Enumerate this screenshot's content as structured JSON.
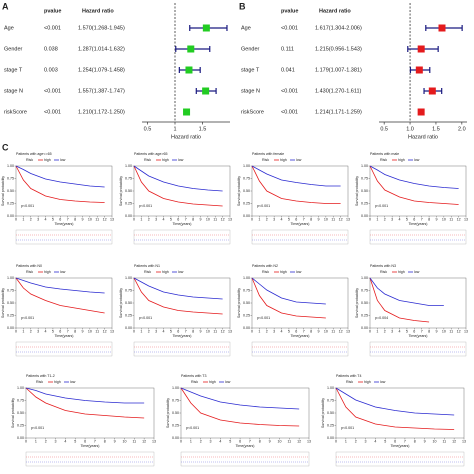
{
  "chart_data": [
    {
      "type": "forest",
      "label": "A",
      "headers": [
        "pvalue",
        "Hazard ratio"
      ],
      "categories": [
        "Age",
        "Gender",
        "stage T",
        "stage N",
        "riskScore"
      ],
      "pvalues": [
        "<0.001",
        "0.038",
        "0.003",
        "<0.001",
        "<0.001"
      ],
      "values": [
        1.57,
        1.287,
        1.254,
        1.557,
        1.21
      ],
      "lower": [
        1.268,
        1.014,
        1.079,
        1.387,
        1.172
      ],
      "upper": [
        1.945,
        1.632,
        1.458,
        1.747,
        1.25
      ],
      "value_labels": [
        "1.570(1.268-1.945)",
        "1.287(1.014-1.632)",
        "1.254(1.079-1.458)",
        "1.557(1.387-1.747)",
        "1.210(1.172-1.250)"
      ],
      "color": "#22cc22",
      "bar_color": "#1a1a80",
      "reference": 1,
      "xlim": [
        0.4,
        2.0
      ],
      "xticks": [
        0.5,
        1,
        1.5
      ],
      "xlabel": "Hazard ratio"
    },
    {
      "type": "forest",
      "label": "B",
      "headers": [
        "pvalue",
        "Hazard ratio"
      ],
      "categories": [
        "Age",
        "Gender",
        "stage T",
        "stage N",
        "riskScore"
      ],
      "pvalues": [
        "<0.001",
        "0.111",
        "0.041",
        "<0.001",
        "<0.001"
      ],
      "values": [
        1.617,
        1.215,
        1.179,
        1.43,
        1.214
      ],
      "lower": [
        1.304,
        0.956,
        1.007,
        1.27,
        1.171
      ],
      "upper": [
        2.006,
        1.543,
        1.381,
        1.611,
        1.259
      ],
      "value_labels": [
        "1.617(1.304-2.006)",
        "1.215(0.956-1.543)",
        "1.179(1.007-1.381)",
        "1.430(1.270-1.611)",
        "1.214(1.171-1.259)"
      ],
      "color": "#e41a1c",
      "bar_color": "#1a1a80",
      "reference": 1,
      "xlim": [
        0.4,
        2.1
      ],
      "xticks": [
        0.5,
        {
          "value": 1,
          "label": "1.0"
        },
        1.5,
        {
          "value": 2,
          "label": "2.0"
        }
      ],
      "xlabel": "Hazard ratio"
    },
    {
      "type": "km",
      "label": "C",
      "title": "Patients with age<=65",
      "pvalue_text": "p<0.001",
      "legend_title": "Risk",
      "xlabel": "Time(years)",
      "ylabel": "Survival probability",
      "x": [
        0,
        1,
        2,
        4,
        6,
        8,
        10,
        12
      ],
      "xlim": [
        0,
        13
      ],
      "xticks": [
        0,
        1,
        2,
        3,
        4,
        5,
        6,
        7,
        8,
        9,
        10,
        11,
        12,
        13
      ],
      "ylim": [
        0,
        1
      ],
      "yticks": [
        {
          "value": 0,
          "label": "0.00"
        },
        0.25,
        {
          "value": 0.5,
          "label": "0.50"
        },
        0.75,
        {
          "value": 1,
          "label": "1.00"
        }
      ],
      "series": [
        {
          "name": "high",
          "color": "#e41a1c",
          "values": [
            1,
            0.72,
            0.55,
            0.4,
            0.33,
            0.3,
            0.28,
            0.27
          ]
        },
        {
          "name": "low",
          "color": "#2a2ad0",
          "values": [
            1,
            0.93,
            0.85,
            0.74,
            0.68,
            0.64,
            0.6,
            0.58
          ]
        }
      ]
    },
    {
      "type": "km",
      "title": "Patients with age>65",
      "pvalue_text": "p<0.001",
      "legend_title": "Risk",
      "xlabel": "Time(years)",
      "ylabel": "Survival probability",
      "x": [
        0,
        1,
        2,
        4,
        6,
        8,
        10,
        12
      ],
      "xlim": [
        0,
        13
      ],
      "xticks": [
        0,
        1,
        2,
        3,
        4,
        5,
        6,
        7,
        8,
        9,
        10,
        11,
        12,
        13
      ],
      "ylim": [
        0,
        1
      ],
      "yticks": [
        {
          "value": 0,
          "label": "0.00"
        },
        0.25,
        {
          "value": 0.5,
          "label": "0.50"
        },
        0.75,
        {
          "value": 1,
          "label": "1.00"
        }
      ],
      "series": [
        {
          "name": "high",
          "color": "#e41a1c",
          "values": [
            1,
            0.68,
            0.5,
            0.35,
            0.28,
            0.24,
            0.22,
            0.2
          ]
        },
        {
          "name": "low",
          "color": "#2a2ad0",
          "values": [
            1,
            0.9,
            0.8,
            0.68,
            0.6,
            0.55,
            0.52,
            0.5
          ]
        }
      ]
    },
    {
      "type": "km",
      "title": "Patients with female",
      "pvalue_text": "p<0.001",
      "legend_title": "Risk",
      "xlabel": "Time(years)",
      "ylabel": "Survival probability",
      "x": [
        0,
        1,
        2,
        4,
        6,
        8,
        10,
        12
      ],
      "xlim": [
        0,
        13
      ],
      "xticks": [
        0,
        1,
        2,
        3,
        4,
        5,
        6,
        7,
        8,
        9,
        10,
        11,
        12,
        13
      ],
      "ylim": [
        0,
        1
      ],
      "yticks": [
        {
          "value": 0,
          "label": "0.00"
        },
        0.25,
        {
          "value": 0.5,
          "label": "0.50"
        },
        0.75,
        {
          "value": 1,
          "label": "1.00"
        }
      ],
      "series": [
        {
          "name": "high",
          "color": "#e41a1c",
          "values": [
            1,
            0.7,
            0.5,
            0.35,
            0.3,
            0.27,
            0.25,
            0.25
          ]
        },
        {
          "name": "low",
          "color": "#2a2ad0",
          "values": [
            1,
            0.92,
            0.84,
            0.72,
            0.67,
            0.63,
            0.6,
            0.6
          ]
        }
      ]
    },
    {
      "type": "km",
      "title": "Patients with male",
      "pvalue_text": "p<0.001",
      "legend_title": "Risk",
      "xlabel": "Time(years)",
      "ylabel": "Survival probability",
      "x": [
        0,
        1,
        2,
        4,
        6,
        8,
        10,
        12
      ],
      "xlim": [
        0,
        13
      ],
      "xticks": [
        0,
        1,
        2,
        3,
        4,
        5,
        6,
        7,
        8,
        9,
        10,
        11,
        12,
        13
      ],
      "ylim": [
        0,
        1
      ],
      "yticks": [
        {
          "value": 0,
          "label": "0.00"
        },
        0.25,
        {
          "value": 0.5,
          "label": "0.50"
        },
        0.75,
        {
          "value": 1,
          "label": "1.00"
        }
      ],
      "series": [
        {
          "name": "high",
          "color": "#e41a1c",
          "values": [
            1,
            0.7,
            0.52,
            0.38,
            0.3,
            0.27,
            0.25,
            0.23
          ]
        },
        {
          "name": "low",
          "color": "#2a2ad0",
          "values": [
            1,
            0.92,
            0.83,
            0.72,
            0.65,
            0.6,
            0.57,
            0.55
          ]
        }
      ]
    },
    {
      "type": "km",
      "title": "Patients with N0",
      "pvalue_text": "p<0.001",
      "legend_title": "Risk",
      "xlabel": "Time(years)",
      "ylabel": "Survival probability",
      "x": [
        0,
        1,
        2,
        4,
        6,
        8,
        10,
        12
      ],
      "xlim": [
        0,
        13
      ],
      "xticks": [
        0,
        1,
        2,
        3,
        4,
        5,
        6,
        7,
        8,
        9,
        10,
        11,
        12,
        13
      ],
      "ylim": [
        0,
        1
      ],
      "yticks": [
        {
          "value": 0,
          "label": "0.00"
        },
        0.25,
        {
          "value": 0.5,
          "label": "0.50"
        },
        0.75,
        {
          "value": 1,
          "label": "1.00"
        }
      ],
      "series": [
        {
          "name": "high",
          "color": "#e41a1c",
          "values": [
            1,
            0.8,
            0.68,
            0.55,
            0.45,
            0.4,
            0.35,
            0.3
          ]
        },
        {
          "name": "low",
          "color": "#2a2ad0",
          "values": [
            1,
            0.95,
            0.9,
            0.82,
            0.78,
            0.75,
            0.72,
            0.7
          ]
        }
      ]
    },
    {
      "type": "km",
      "title": "Patients with N1",
      "pvalue_text": "p<0.001",
      "legend_title": "Risk",
      "xlabel": "Time(years)",
      "ylabel": "Survival probability",
      "x": [
        0,
        1,
        2,
        4,
        6,
        8,
        10,
        12
      ],
      "xlim": [
        0,
        13
      ],
      "xticks": [
        0,
        1,
        2,
        3,
        4,
        5,
        6,
        7,
        8,
        9,
        10,
        11,
        12,
        13
      ],
      "ylim": [
        0,
        1
      ],
      "yticks": [
        {
          "value": 0,
          "label": "0.00"
        },
        0.25,
        {
          "value": 0.5,
          "label": "0.50"
        },
        0.75,
        {
          "value": 1,
          "label": "1.00"
        }
      ],
      "series": [
        {
          "name": "high",
          "color": "#e41a1c",
          "values": [
            1,
            0.72,
            0.55,
            0.42,
            0.35,
            0.32,
            0.3,
            0.28
          ]
        },
        {
          "name": "low",
          "color": "#2a2ad0",
          "values": [
            1,
            0.92,
            0.84,
            0.72,
            0.66,
            0.62,
            0.6,
            0.58
          ]
        }
      ]
    },
    {
      "type": "km",
      "title": "Patients with N2",
      "pvalue_text": "p<0.001",
      "legend_title": "Risk",
      "xlabel": "Time(years)",
      "ylabel": "Survival probability",
      "x": [
        0,
        1,
        2,
        4,
        6,
        8,
        10,
        12
      ],
      "xlim": [
        0,
        13
      ],
      "xticks": [
        0,
        1,
        2,
        3,
        4,
        5,
        6,
        7,
        8,
        9,
        10,
        11,
        12,
        13
      ],
      "ylim": [
        0,
        1
      ],
      "yticks": [
        {
          "value": 0,
          "label": "0.00"
        },
        0.25,
        {
          "value": 0.5,
          "label": "0.50"
        },
        0.75,
        {
          "value": 1,
          "label": "1.00"
        }
      ],
      "series": [
        {
          "name": "high",
          "color": "#e41a1c",
          "values": [
            1,
            0.65,
            0.45,
            0.3,
            0.24,
            0.22,
            0.2,
            null
          ]
        },
        {
          "name": "low",
          "color": "#2a2ad0",
          "values": [
            1,
            0.88,
            0.76,
            0.6,
            0.52,
            0.5,
            0.48,
            null
          ]
        }
      ]
    },
    {
      "type": "km",
      "title": "Patients with N3",
      "pvalue_text": "p=0.004",
      "legend_title": "Risk",
      "xlabel": "Time(years)",
      "ylabel": "Survival probability",
      "x": [
        0,
        1,
        2,
        4,
        6,
        8,
        10,
        12
      ],
      "xlim": [
        0,
        13
      ],
      "xticks": [
        0,
        1,
        2,
        3,
        4,
        5,
        6,
        7,
        8,
        9,
        10,
        11,
        12,
        13
      ],
      "ylim": [
        0,
        1
      ],
      "yticks": [
        {
          "value": 0,
          "label": "0.00"
        },
        0.25,
        {
          "value": 0.5,
          "label": "0.50"
        },
        0.75,
        {
          "value": 1,
          "label": "1.00"
        }
      ],
      "series": [
        {
          "name": "high",
          "color": "#e41a1c",
          "values": [
            1,
            0.55,
            0.35,
            0.2,
            0.15,
            0.12,
            null,
            null
          ]
        },
        {
          "name": "low",
          "color": "#2a2ad0",
          "values": [
            1,
            0.8,
            0.68,
            0.55,
            0.5,
            0.45,
            0.45,
            null
          ]
        }
      ]
    },
    {
      "type": "km",
      "title": "Patients with T1-2",
      "pvalue_text": "p<0.001",
      "legend_title": "Risk",
      "xlabel": "Time(years)",
      "ylabel": "Survival probability",
      "x": [
        0,
        1,
        2,
        4,
        6,
        8,
        10,
        12
      ],
      "xlim": [
        0,
        13
      ],
      "xticks": [
        0,
        1,
        2,
        3,
        4,
        5,
        6,
        7,
        8,
        9,
        10,
        11,
        12,
        13
      ],
      "ylim": [
        0,
        1
      ],
      "yticks": [
        {
          "value": 0,
          "label": "0.00"
        },
        0.25,
        {
          "value": 0.5,
          "label": "0.50"
        },
        0.75,
        {
          "value": 1,
          "label": "1.00"
        }
      ],
      "series": [
        {
          "name": "high",
          "color": "#e41a1c",
          "values": [
            1,
            0.82,
            0.7,
            0.55,
            0.48,
            0.45,
            0.42,
            0.4
          ]
        },
        {
          "name": "low",
          "color": "#2a2ad0",
          "values": [
            1,
            0.95,
            0.88,
            0.8,
            0.75,
            0.72,
            0.7,
            0.7
          ]
        }
      ]
    },
    {
      "type": "km",
      "title": "Patients with T3",
      "pvalue_text": "p<0.001",
      "legend_title": "Risk",
      "xlabel": "Time(years)",
      "ylabel": "Survival probability",
      "x": [
        0,
        1,
        2,
        4,
        6,
        8,
        10,
        12
      ],
      "xlim": [
        0,
        13
      ],
      "xticks": [
        0,
        1,
        2,
        3,
        4,
        5,
        6,
        7,
        8,
        9,
        10,
        11,
        12,
        13
      ],
      "ylim": [
        0,
        1
      ],
      "yticks": [
        {
          "value": 0,
          "label": "0.00"
        },
        0.25,
        {
          "value": 0.5,
          "label": "0.50"
        },
        0.75,
        {
          "value": 1,
          "label": "1.00"
        }
      ],
      "series": [
        {
          "name": "high",
          "color": "#e41a1c",
          "values": [
            1,
            0.7,
            0.5,
            0.36,
            0.3,
            0.27,
            0.25,
            0.24
          ]
        },
        {
          "name": "low",
          "color": "#2a2ad0",
          "values": [
            1,
            0.92,
            0.84,
            0.72,
            0.66,
            0.62,
            0.6,
            0.58
          ]
        }
      ]
    },
    {
      "type": "km",
      "title": "Patients with T4",
      "pvalue_text": "p<0.001",
      "legend_title": "Risk",
      "xlabel": "Time(years)",
      "ylabel": "Survival probability",
      "x": [
        0,
        1,
        2,
        4,
        6,
        8,
        10,
        12
      ],
      "xlim": [
        0,
        13
      ],
      "xticks": [
        0,
        1,
        2,
        3,
        4,
        5,
        6,
        7,
        8,
        9,
        10,
        11,
        12,
        13
      ],
      "ylim": [
        0,
        1
      ],
      "yticks": [
        {
          "value": 0,
          "label": "0.00"
        },
        0.25,
        {
          "value": 0.5,
          "label": "0.50"
        },
        0.75,
        {
          "value": 1,
          "label": "1.00"
        }
      ],
      "series": [
        {
          "name": "high",
          "color": "#e41a1c",
          "values": [
            1,
            0.62,
            0.42,
            0.28,
            0.22,
            0.2,
            0.18,
            0.17
          ]
        },
        {
          "name": "low",
          "color": "#2a2ad0",
          "values": [
            1,
            0.88,
            0.76,
            0.62,
            0.55,
            0.5,
            0.48,
            0.46
          ]
        }
      ]
    }
  ]
}
